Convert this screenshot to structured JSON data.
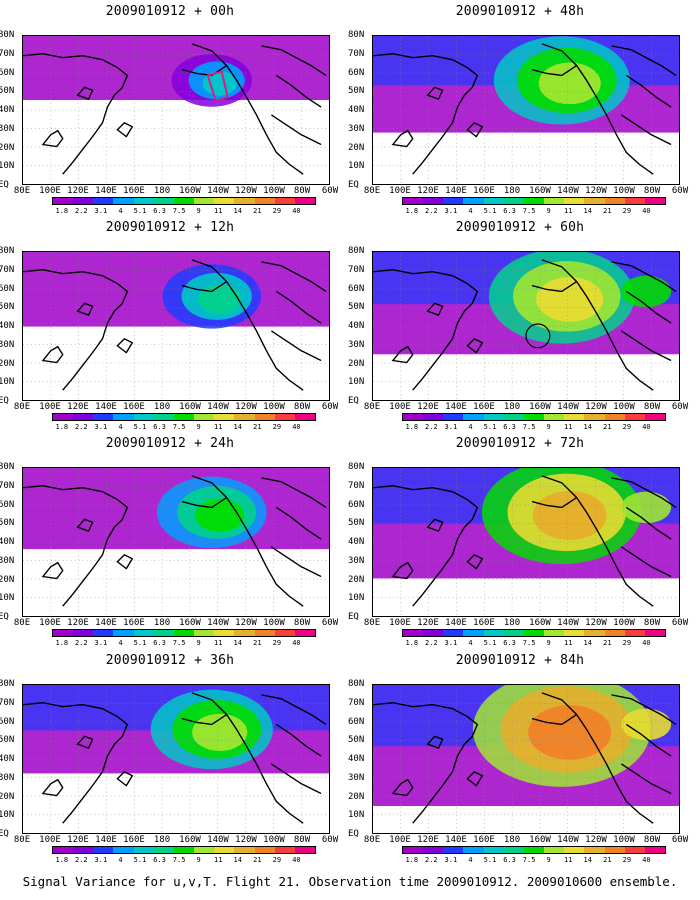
{
  "figure_caption": "Signal Variance for u,v,T. Flight 21. Observation time 2009010912. 2009010600 ensemble.",
  "panels": [
    {
      "title": "2009010912 + 00h",
      "intensity": 0.15
    },
    {
      "title": "2009010912 + 48h",
      "intensity": 0.55
    },
    {
      "title": "2009010912 + 12h",
      "intensity": 0.28
    },
    {
      "title": "2009010912 + 60h",
      "intensity": 0.62
    },
    {
      "title": "2009010912 + 24h",
      "intensity": 0.36
    },
    {
      "title": "2009010912 + 72h",
      "intensity": 0.72
    },
    {
      "title": "2009010912 + 36h",
      "intensity": 0.45
    },
    {
      "title": "2009010912 + 84h",
      "intensity": 0.85
    }
  ],
  "lat_labels": [
    "80N",
    "70N",
    "60N",
    "50N",
    "40N",
    "30N",
    "20N",
    "10N",
    "EQ"
  ],
  "lon_labels": [
    "80E",
    "100E",
    "120E",
    "140E",
    "160E",
    "180",
    "160W",
    "140W",
    "120W",
    "100W",
    "80W",
    "60W"
  ],
  "colorbar": {
    "ticks": [
      "1.8",
      "2.2",
      "3.1",
      "4",
      "5.1",
      "6.3",
      "7.5",
      "9",
      "11",
      "14",
      "21",
      "29",
      "40"
    ],
    "colors": [
      "#a000c8",
      "#8200dc",
      "#1e3cff",
      "#00a0ff",
      "#00c8c8",
      "#00d28c",
      "#00dc00",
      "#a0e632",
      "#e6dc32",
      "#e6af2d",
      "#f08228",
      "#fa3c3c",
      "#f00082"
    ]
  }
}
